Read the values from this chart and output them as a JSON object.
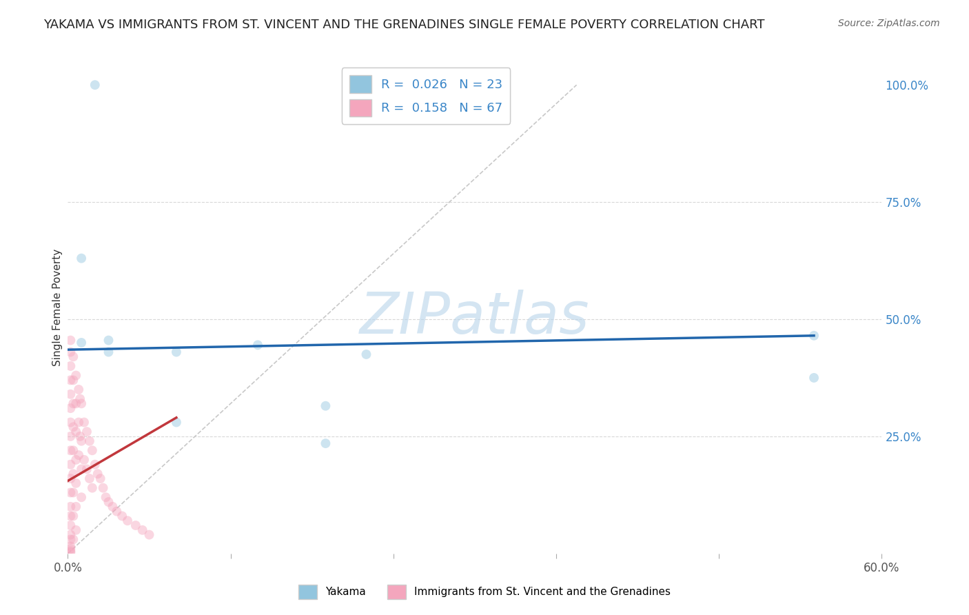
{
  "title": "YAKAMA VS IMMIGRANTS FROM ST. VINCENT AND THE GRENADINES SINGLE FEMALE POVERTY CORRELATION CHART",
  "source": "Source: ZipAtlas.com",
  "ylabel": "Single Female Poverty",
  "watermark": "ZIPatlas",
  "blue_color": "#92c5de",
  "pink_color": "#f4a6bd",
  "blue_line_color": "#2166ac",
  "pink_line_color": "#c1373c",
  "diag_line_color": "#c8c8c8",
  "xmin": 0.0,
  "xmax": 0.6,
  "ymin": 0.0,
  "ymax": 1.05,
  "blue_scatter_x": [
    0.02,
    0.01,
    0.01,
    0.03,
    0.03,
    0.08,
    0.08,
    0.14,
    0.19,
    0.19,
    0.22,
    0.55,
    0.55
  ],
  "blue_scatter_y": [
    1.0,
    0.63,
    0.45,
    0.455,
    0.43,
    0.43,
    0.28,
    0.445,
    0.315,
    0.235,
    0.425,
    0.465,
    0.375
  ],
  "pink_scatter_x": [
    0.002,
    0.002,
    0.002,
    0.002,
    0.002,
    0.002,
    0.002,
    0.002,
    0.002,
    0.002,
    0.002,
    0.002,
    0.002,
    0.002,
    0.002,
    0.002,
    0.002,
    0.002,
    0.002,
    0.002,
    0.002,
    0.004,
    0.004,
    0.004,
    0.004,
    0.004,
    0.004,
    0.004,
    0.004,
    0.004,
    0.006,
    0.006,
    0.006,
    0.006,
    0.006,
    0.006,
    0.006,
    0.008,
    0.008,
    0.008,
    0.009,
    0.009,
    0.01,
    0.01,
    0.01,
    0.01,
    0.012,
    0.012,
    0.014,
    0.014,
    0.016,
    0.016,
    0.018,
    0.018,
    0.02,
    0.022,
    0.024,
    0.026,
    0.028,
    0.03,
    0.033,
    0.036,
    0.04,
    0.044,
    0.05,
    0.055,
    0.06
  ],
  "pink_scatter_y": [
    0.455,
    0.43,
    0.4,
    0.37,
    0.34,
    0.31,
    0.28,
    0.25,
    0.22,
    0.19,
    0.16,
    0.13,
    0.1,
    0.08,
    0.06,
    0.04,
    0.03,
    0.015,
    0.01,
    0.005,
    0.002,
    0.42,
    0.37,
    0.32,
    0.27,
    0.22,
    0.17,
    0.13,
    0.08,
    0.03,
    0.38,
    0.32,
    0.26,
    0.2,
    0.15,
    0.1,
    0.05,
    0.35,
    0.28,
    0.21,
    0.33,
    0.25,
    0.32,
    0.24,
    0.18,
    0.12,
    0.28,
    0.2,
    0.26,
    0.18,
    0.24,
    0.16,
    0.22,
    0.14,
    0.19,
    0.17,
    0.16,
    0.14,
    0.12,
    0.11,
    0.1,
    0.09,
    0.08,
    0.07,
    0.06,
    0.05,
    0.04
  ],
  "blue_trend_x": [
    0.0,
    0.55
  ],
  "blue_trend_y": [
    0.435,
    0.465
  ],
  "pink_trend_x": [
    0.0,
    0.08
  ],
  "pink_trend_y": [
    0.155,
    0.29
  ],
  "diag_line_x": [
    0.0,
    0.375
  ],
  "diag_line_y": [
    0.0,
    1.0
  ],
  "title_fontsize": 13,
  "source_fontsize": 10,
  "label_fontsize": 11,
  "tick_fontsize": 12,
  "legend_fontsize": 13,
  "watermark_fontsize": 60,
  "scatter_size": 100,
  "scatter_alpha": 0.45,
  "background_color": "#ffffff",
  "grid_color": "#d8d8d8"
}
